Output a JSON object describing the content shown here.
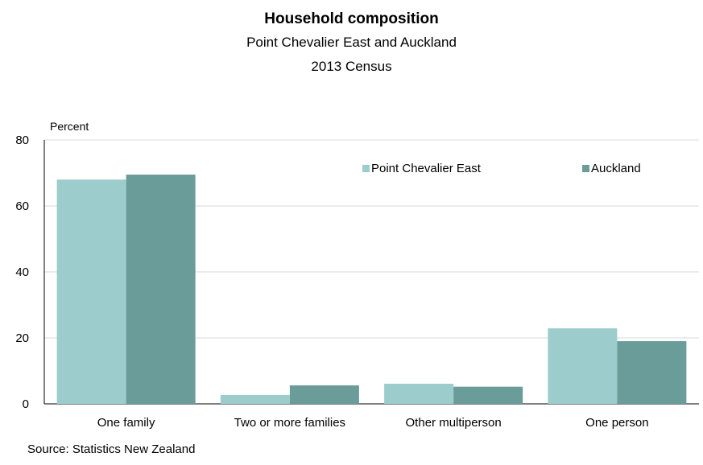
{
  "chart_data": {
    "type": "bar",
    "title": "Household composition",
    "subtitle": [
      "Point Chevalier East and Auckland",
      "2013 Census"
    ],
    "ylabel": "Percent",
    "xlabel": "",
    "categories": [
      "One family",
      "Two or more families",
      "Other multiperson",
      "One person"
    ],
    "series": [
      {
        "name": "Point Chevalier East",
        "color": "#9dcccc",
        "values": [
          68.0,
          2.7,
          6.1,
          22.9
        ]
      },
      {
        "name": "Auckland",
        "color": "#6a9c9a",
        "values": [
          69.5,
          5.6,
          5.2,
          19.0
        ]
      }
    ],
    "ylim": [
      0,
      80
    ],
    "yticks": [
      0,
      20,
      40,
      60,
      80
    ],
    "grid": true,
    "legend": "top-right"
  },
  "source": "Source: Statistics New Zealand"
}
